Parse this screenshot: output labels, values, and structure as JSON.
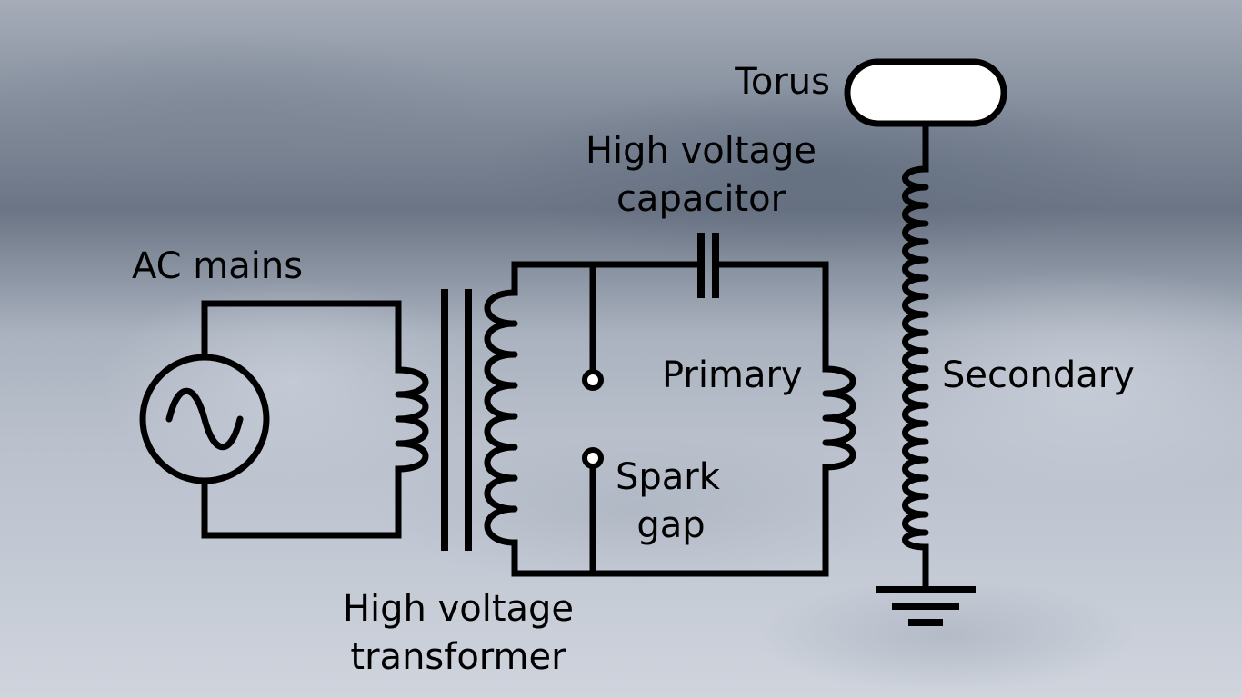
{
  "labels": {
    "ac_mains": "AC mains",
    "hv_transformer": [
      "High voltage",
      "transformer"
    ],
    "hv_capacitor": [
      "High voltage",
      "capacitor"
    ],
    "primary": "Primary",
    "spark_gap": [
      "Spark",
      "gap"
    ],
    "secondary": "Secondary",
    "torus": "Torus"
  },
  "colors": {
    "line": "#000000",
    "torus_fill": "#ffffff"
  },
  "icons": {
    "ac_source": "ac-sine-source",
    "ground": "ground-symbol"
  }
}
